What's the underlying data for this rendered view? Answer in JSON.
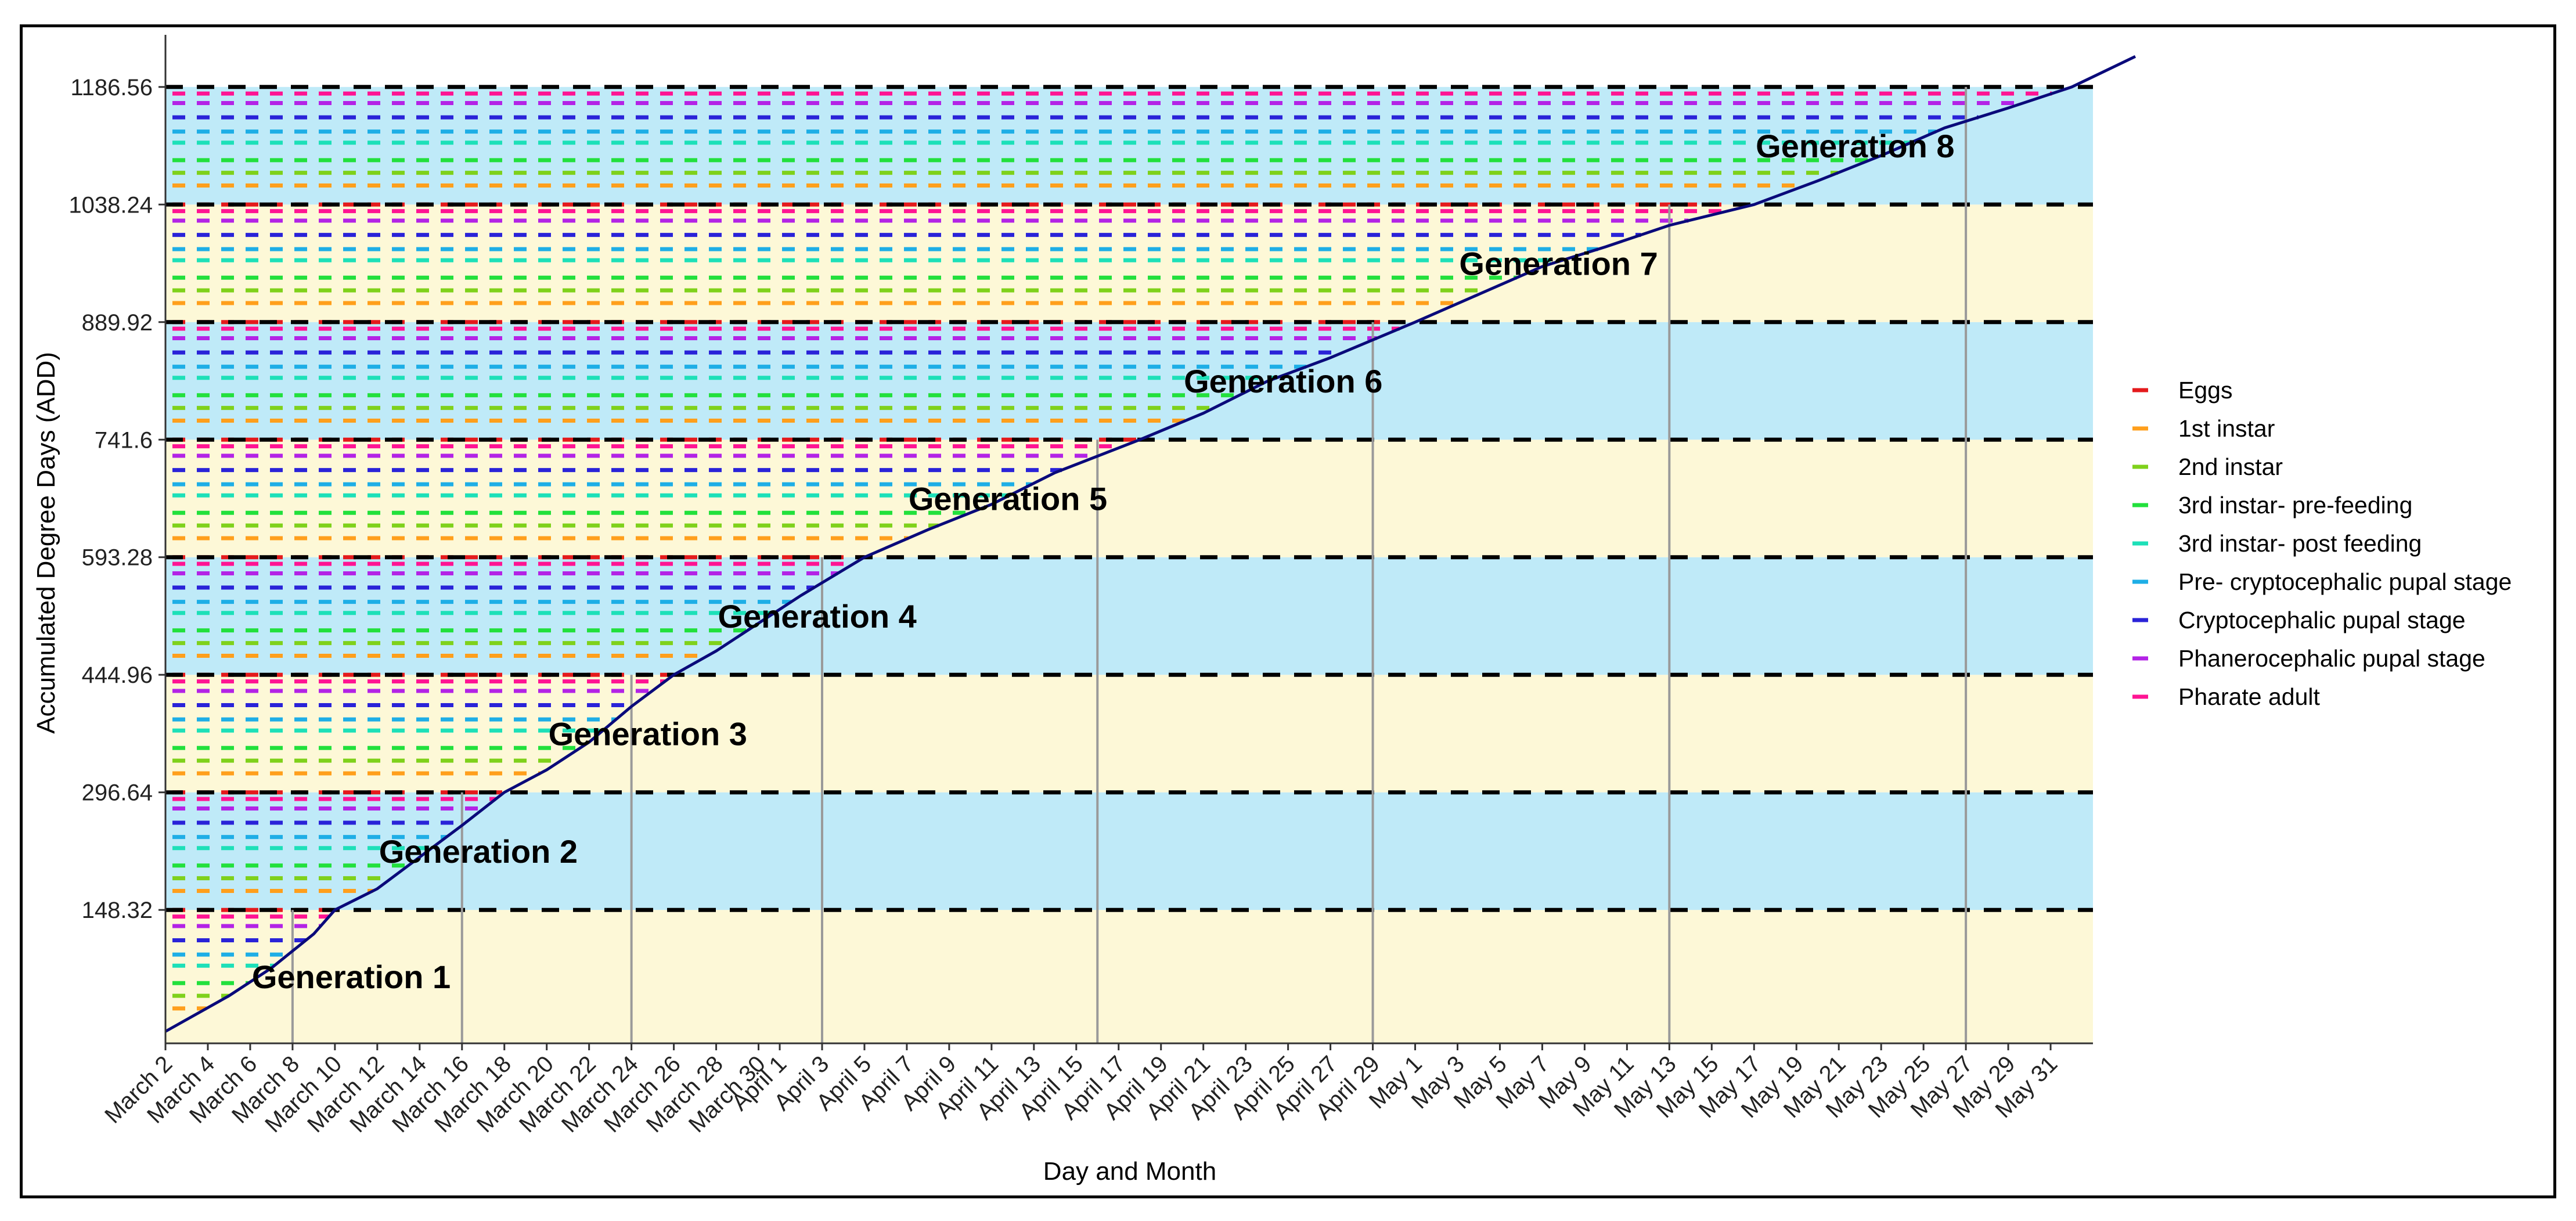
{
  "chart_data": {
    "type": "line",
    "title": "",
    "xlabel": "Day and Month",
    "ylabel": "Accumulated Degree Days (ADD)",
    "x_tick_labels": [
      "March 2",
      "March 4",
      "March 6",
      "March 8",
      "March 10",
      "March 12",
      "March 14",
      "March 16",
      "March 18",
      "March 20",
      "March 22",
      "March 24",
      "March 26",
      "March 28",
      "March 30",
      "April 1",
      "April 3",
      "April 5",
      "April 7",
      "April 9",
      "April 11",
      "April 13",
      "April 15",
      "April 17",
      "April 19",
      "April 21",
      "April 23",
      "April 25",
      "April 27",
      "April 29",
      "May 1",
      "May 3",
      "May 5",
      "May 7",
      "May 9",
      "May 11",
      "May 13",
      "May 15",
      "May 17",
      "May 19",
      "May 21",
      "May 23",
      "May 25",
      "May 27",
      "May 29",
      "May 31"
    ],
    "y_tick_labels": [
      "148.32",
      "296.64",
      "444.96",
      "593.28",
      "741.6",
      "889.92",
      "1038.24",
      "1186.56"
    ],
    "y_ticks": [
      148.32,
      296.64,
      444.96,
      593.28,
      741.6,
      889.92,
      1038.24,
      1186.56
    ],
    "ylim": [
      -20,
      1245
    ],
    "x_range_days": [
      0,
      91
    ],
    "grid": false,
    "legend_position": "right",
    "generations": [
      {
        "label": "Generation 1",
        "y_from": -20,
        "y_to": 148.32,
        "end_day": "March 8",
        "color": "#fdf8d7"
      },
      {
        "label": "Generation 2",
        "y_from": 148.32,
        "y_to": 296.64,
        "end_day": "March 16",
        "color": "#bfeaf8"
      },
      {
        "label": "Generation 3",
        "y_from": 296.64,
        "y_to": 444.96,
        "end_day": "March 24",
        "color": "#fdf8d7"
      },
      {
        "label": "Generation 4",
        "y_from": 444.96,
        "y_to": 593.28,
        "end_day": "April 3",
        "color": "#bfeaf8"
      },
      {
        "label": "Generation 5",
        "y_from": 593.28,
        "y_to": 741.6,
        "end_day": "April 16",
        "color": "#fdf8d7"
      },
      {
        "label": "Generation 6",
        "y_from": 741.6,
        "y_to": 889.92,
        "end_day": "April 29",
        "color": "#bfeaf8"
      },
      {
        "label": "Generation 7",
        "y_from": 889.92,
        "y_to": 1038.24,
        "end_day": "May 13",
        "color": "#fdf8d7"
      },
      {
        "label": "Generation 8",
        "y_from": 1038.24,
        "y_to": 1186.56,
        "end_day": "May 27",
        "color": "#bfeaf8"
      }
    ],
    "stage_thresholds": [
      {
        "name": "Eggs",
        "color": "#e41a1c",
        "add": 0
      },
      {
        "name": "1st instar",
        "color": "#ff9f1c",
        "add": 24
      },
      {
        "name": "2nd instar",
        "color": "#7fd11b",
        "add": 40
      },
      {
        "name": "3rd instar- pre-feeding",
        "color": "#22e03c",
        "add": 56
      },
      {
        "name": "3rd instar- post feeding",
        "color": "#1de0b8",
        "add": 78
      },
      {
        "name": "Pre- cryptocephalic pupal stage",
        "color": "#1eaee6",
        "add": 92
      },
      {
        "name": "Cryptocephalic pupal stage",
        "color": "#2a23d8",
        "add": 110
      },
      {
        "name": "Phanerocephalic pupal stage",
        "color": "#b323e6",
        "add": 128
      },
      {
        "name": "Pharate adult",
        "color": "#ff1493",
        "add": 140
      }
    ],
    "series": [
      {
        "name": "ADD",
        "color": "#0a0a7a",
        "points": [
          [
            0,
            -5
          ],
          [
            3,
            40
          ],
          [
            5,
            75
          ],
          [
            7,
            118
          ],
          [
            8,
            148.32
          ],
          [
            10,
            175
          ],
          [
            12,
            215
          ],
          [
            14,
            255
          ],
          [
            16,
            296.64
          ],
          [
            18,
            325
          ],
          [
            20,
            360
          ],
          [
            22,
            405
          ],
          [
            24,
            444.96
          ],
          [
            26,
            475
          ],
          [
            28,
            510
          ],
          [
            30,
            545
          ],
          [
            33,
            593.28
          ],
          [
            36,
            628
          ],
          [
            39,
            660
          ],
          [
            42,
            700
          ],
          [
            46,
            741.6
          ],
          [
            49,
            775
          ],
          [
            52,
            815
          ],
          [
            55,
            845
          ],
          [
            59,
            889.92
          ],
          [
            62,
            925
          ],
          [
            65,
            960
          ],
          [
            68,
            985
          ],
          [
            71,
            1012
          ],
          [
            75,
            1038.24
          ],
          [
            78,
            1068
          ],
          [
            81,
            1100
          ],
          [
            84,
            1135
          ],
          [
            87,
            1160
          ],
          [
            90,
            1186.56
          ],
          [
            93,
            1225
          ]
        ]
      }
    ]
  }
}
